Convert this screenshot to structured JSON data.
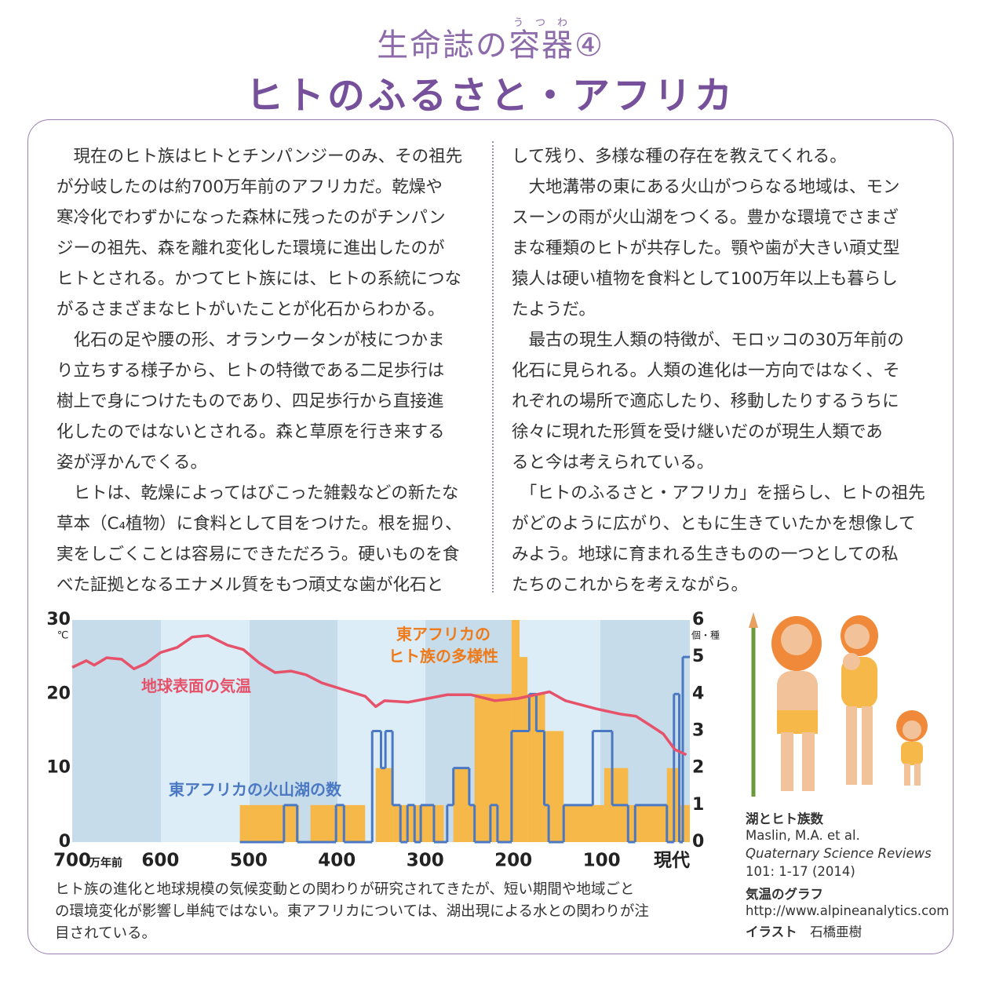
{
  "header": {
    "series": "生命誌の",
    "ruby_base": "容器",
    "ruby": "うつわ",
    "number": "④",
    "title": "ヒトのふるさと・アフリカ"
  },
  "body": {
    "columns": [
      [
        "　現在のヒト族はヒトとチンパンジーのみ、その祖先",
        "が分岐したのは約700万年前のアフリカだ。乾燥や",
        "寒冷化でわずかになった森林に残ったのがチンパン",
        "ジーの祖先、森を離れ変化した環境に進出したのが",
        "ヒトとされる。かつてヒト族には、ヒトの系統につな",
        "がるさまざまなヒトがいたことが化石からわかる。",
        "　化石の足や腰の形、オランウータンが枝につかま",
        "り立ちする様子から、ヒトの特徴である二足歩行は",
        "樹上で身につけたものであり、四足歩行から直接進",
        "化したのではないとされる。森と草原を行き来する",
        "姿が浮かんでくる。",
        "　ヒトは、乾燥によってはびこった雑穀などの新たな",
        "草本（C₄植物）に食料として目をつけた。根を掘り、",
        "実をしごくことは容易にできただろう。硬いものを食",
        "べた証拠となるエナメル質をもつ頑丈な歯が化石と"
      ],
      [
        "して残り、多様な種の存在を教えてくれる。",
        "　大地溝帯の東にある火山がつらなる地域は、モン",
        "スーンの雨が火山湖をつくる。豊かな環境でさまざ",
        "まな種類のヒトが共存した。顎や歯が大きい頑丈型",
        "猿人は硬い植物を食料として100万年以上も暮らし",
        "たようだ。",
        "　最古の現生人類の特徴が、モロッコの30万年前の",
        "化石に見られる。人類の進化は一方向ではなく、そ",
        "れぞれの場所で適応したり、移動したりするうちに",
        "徐々に現れた形質を受け継いだのが現生人類であ",
        "ると今は考えられている。",
        "　「ヒトのふるさと・アフリカ」を揺らし、ヒトの祖先",
        "がどのように広がり、ともに生きていたかを想像して",
        "みよう。地球に育まれる生きものの一つとしての私",
        "たちのこれからを考えながら。"
      ]
    ]
  },
  "chart_data": {
    "type": "combo",
    "xlim": [
      700,
      0
    ],
    "xticks": [
      700,
      600,
      500,
      400,
      300,
      200,
      100,
      {
        "value": 0,
        "label": "現代"
      }
    ],
    "x_unit": "万年前",
    "ylim": [
      0,
      30
    ],
    "yticks": [
      0,
      10,
      20,
      30
    ],
    "y_unit": "℃",
    "y2lim": [
      0,
      6
    ],
    "y2ticks": [
      0,
      1,
      2,
      3,
      4,
      5,
      6
    ],
    "y2_unit": "個・種",
    "series": [
      {
        "name": "地球表面の気温",
        "type": "line",
        "color": "#e5526a",
        "x": [
          700,
          684,
          675,
          661,
          644,
          630,
          617,
          600,
          581,
          564,
          546,
          524,
          506,
          488,
          470,
          452,
          435,
          417,
          390,
          368,
          356,
          346,
          319,
          297,
          275,
          248,
          221,
          195,
          159,
          141,
          106,
          79,
          61,
          44,
          30,
          17,
          4
        ],
        "values": [
          23.6,
          24.5,
          23.9,
          24.9,
          24.7,
          23.4,
          24.1,
          25.6,
          26.3,
          27.7,
          27.9,
          26.6,
          26.0,
          24.2,
          22.9,
          23.1,
          22.6,
          21.5,
          20.5,
          19.7,
          18.3,
          19.1,
          18.9,
          19.4,
          19.9,
          19.9,
          19.1,
          19.4,
          20.3,
          19.1,
          18.0,
          17.3,
          17.0,
          15.7,
          14.6,
          12.5,
          11.8
        ]
      },
      {
        "name": "東アフリカの\nヒト族の多様性",
        "type": "histogram",
        "axis": "y2",
        "color": "#f7b84a",
        "bins": [
          510,
          443,
          430,
          368,
          356,
          337,
          279,
          268,
          250,
          244,
          202,
          193,
          184,
          164,
          143,
          97,
          70,
          26,
          11,
          0
        ],
        "values": [
          1,
          0,
          1,
          0,
          2,
          1,
          0,
          2,
          1,
          4,
          6,
          5,
          4,
          3,
          1,
          2,
          1,
          2,
          1
        ]
      },
      {
        "name": "東アフリカの火山湖の数",
        "type": "step",
        "axis": "y2",
        "color": "#4a78c2",
        "bins": [
          510,
          460,
          445,
          401,
          392,
          360,
          350,
          345,
          337,
          328,
          320,
          312,
          305,
          290,
          275,
          268,
          250,
          244,
          226,
          218,
          202,
          182,
          174,
          165,
          160,
          143,
          110,
          88,
          70,
          62,
          26,
          18,
          12,
          8,
          0
        ],
        "values": [
          0,
          1,
          0,
          1,
          0,
          3,
          2,
          3,
          1,
          0,
          1,
          0,
          1,
          0,
          1,
          2,
          1,
          0,
          1,
          0,
          3,
          4,
          3,
          1,
          0,
          1,
          3,
          1,
          0,
          1,
          0,
          4,
          0,
          5
        ]
      }
    ]
  },
  "caption": [
    "ヒト族の進化と地球規模の気候変動との関わりが研究されてきたが、短い期間や地域ごと",
    "の環境変化が影響し単純ではない。東アフリカについては、湖出現による水との関わりが注",
    "目されている。"
  ],
  "credits": {
    "lake_heading": "湖とヒト族数",
    "authors": "Maslin, M.A. et al.",
    "journal": "Quaternary Science Reviews",
    "volume": "101: 1-17 (2014)",
    "temp_heading": "気温のグラフ",
    "url": "http://www.alpineanalytics.com",
    "illust_heading": "イラスト",
    "illustrator": "石橋亜樹"
  }
}
